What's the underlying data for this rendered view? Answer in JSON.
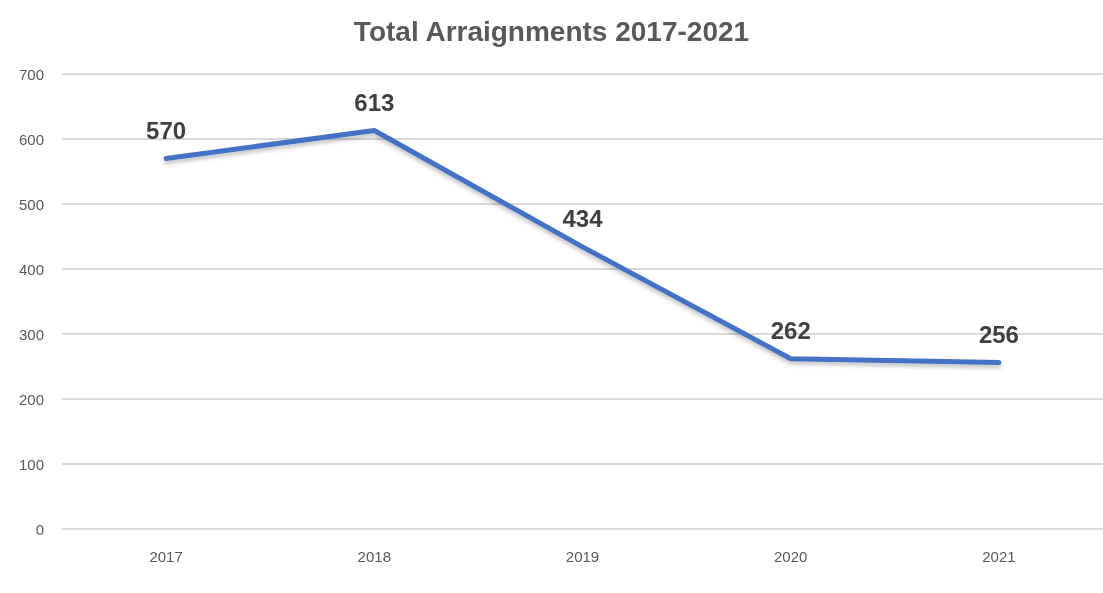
{
  "chart_data": {
    "type": "line",
    "title": "Total Arraignments 2017-2021",
    "categories": [
      "2017",
      "2018",
      "2019",
      "2020",
      "2021"
    ],
    "series": [
      {
        "color": "#4472c4",
        "values": [
          570,
          613,
          434,
          262,
          256
        ]
      }
    ],
    "ylim": [
      0,
      700
    ],
    "yticks": [
      0,
      100,
      200,
      300,
      400,
      500,
      600,
      700
    ],
    "grid": "y",
    "marker": "none",
    "line_style": "solid",
    "data_labels": true
  }
}
